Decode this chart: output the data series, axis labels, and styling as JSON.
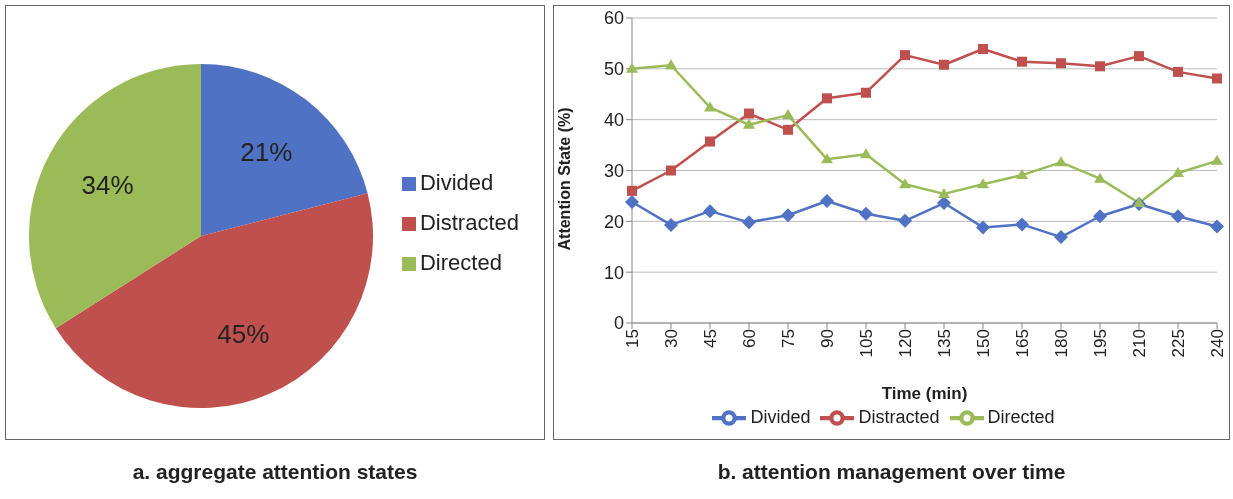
{
  "chart_data": [
    {
      "type": "pie",
      "title": "a. aggregate attention states",
      "categories": [
        "Divided",
        "Distracted",
        "Directed"
      ],
      "values": [
        21,
        45,
        34
      ],
      "colors": [
        "#4f72c4",
        "#c0504d",
        "#9bbb59"
      ],
      "value_labels": [
        "21%",
        "45%",
        "34%"
      ],
      "legend": "right"
    },
    {
      "type": "line",
      "title": "b. attention management over time",
      "xlabel": "Time (min)",
      "ylabel": "Attention State (%)",
      "categories": [
        "15",
        "30",
        "45",
        "60",
        "75",
        "90",
        "105",
        "120",
        "135",
        "150",
        "165",
        "180",
        "195",
        "210",
        "225",
        "240"
      ],
      "ylim": [
        0,
        60
      ],
      "yticks": [
        0,
        10,
        20,
        30,
        40,
        50,
        60
      ],
      "grid": "y",
      "legend": "bottom",
      "series": [
        {
          "name": "Divided",
          "color": "#4f72c4",
          "marker": "diamond",
          "values": [
            23.8,
            19.3,
            22,
            19.8,
            21.2,
            24,
            21.5,
            20.1,
            23.6,
            18.8,
            19.4,
            16.9,
            21,
            23.4,
            21,
            19
          ]
        },
        {
          "name": "Distracted",
          "color": "#c0504d",
          "marker": "square",
          "values": [
            26,
            30,
            35.7,
            41.2,
            38,
            44.2,
            45.3,
            52.7,
            50.8,
            53.9,
            51.4,
            51.1,
            50.5,
            52.5,
            49.4,
            48.1
          ]
        },
        {
          "name": "Directed",
          "color": "#9bbb59",
          "marker": "triangle",
          "values": [
            50,
            50.7,
            42.4,
            39,
            40.9,
            32.2,
            33.2,
            27.3,
            25.4,
            27.3,
            29.1,
            31.6,
            28.4,
            23.6,
            29.5,
            31.9
          ]
        }
      ]
    }
  ]
}
